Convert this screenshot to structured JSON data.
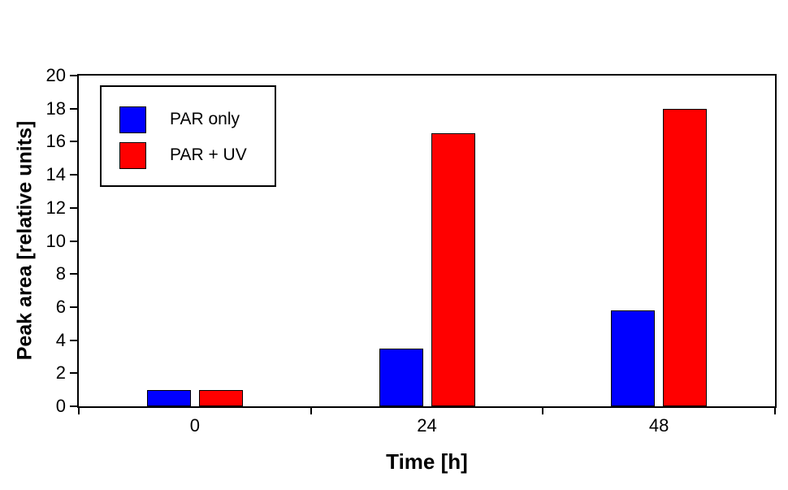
{
  "chart_data": {
    "type": "bar",
    "xlabel": "Time [h]",
    "ylabel": "Peak area [relative units]",
    "categories": [
      "0",
      "24",
      "48"
    ],
    "series": [
      {
        "name": "PAR only",
        "color": "#0000ff",
        "values": [
          1.0,
          3.5,
          5.8
        ]
      },
      {
        "name": "PAR + UV",
        "color": "#ff0000",
        "values": [
          1.0,
          16.5,
          18.0
        ]
      }
    ],
    "ylim": [
      0,
      20
    ],
    "yticks": [
      0,
      2,
      4,
      6,
      8,
      10,
      12,
      14,
      16,
      18,
      20
    ],
    "grid": false,
    "legend_position": "upper-left-inside",
    "bar_outline_color": "#000000",
    "axis_color": "#000000",
    "background": "#ffffff"
  }
}
